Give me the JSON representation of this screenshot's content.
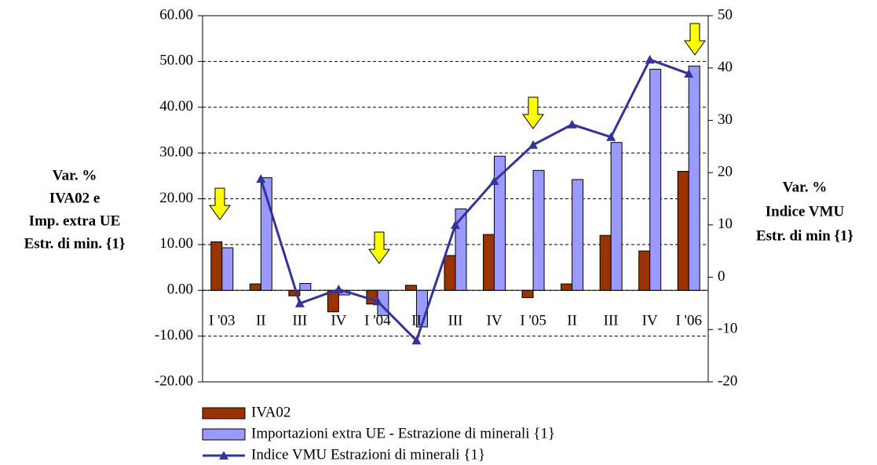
{
  "chart_data": {
    "type": "bar-line",
    "categories": [
      "I '03",
      "II",
      "III",
      "IV",
      "I '04",
      "II",
      "III",
      "IV",
      "I '05",
      "II",
      "III",
      "IV",
      "I '06"
    ],
    "series": [
      {
        "name": "IVA02",
        "type": "bar",
        "color": "#993300",
        "values": [
          10.6,
          1.4,
          -1.2,
          -4.7,
          -3.0,
          1.1,
          7.6,
          12.2,
          -1.6,
          1.4,
          12.0,
          8.6,
          26.0
        ]
      },
      {
        "name": "Importazioni extra UE - Estrazione di minerali {1}",
        "type": "bar",
        "color": "#9999ff",
        "values": [
          9.3,
          24.6,
          1.5,
          -1.0,
          -5.5,
          -8.0,
          17.8,
          29.3,
          26.2,
          24.2,
          32.3,
          48.3,
          49.0
        ]
      },
      {
        "name": "Indice VMU Estrazioni di minerali {1}",
        "type": "line",
        "axis": "y2",
        "color": "#333399",
        "values": [
          null,
          18.8,
          -5.0,
          -2.3,
          -4.6,
          -12.1,
          10.0,
          18.4,
          25.3,
          29.2,
          26.8,
          41.6,
          38.9
        ]
      }
    ],
    "ylabel": [
      "Var. %",
      "IVA02 e",
      "Imp. extra UE",
      "Estr. di min. {1}"
    ],
    "y2label": [
      "Var. %",
      "Indice VMU",
      "Estr. di min {1}"
    ],
    "ylim": [
      -20,
      60
    ],
    "yticks": [
      {
        "value": -20,
        "label": "-20.00"
      },
      {
        "value": -10,
        "label": "-10.00"
      },
      {
        "value": 0,
        "label": "0.00"
      },
      {
        "value": 10,
        "label": "10.00"
      },
      {
        "value": 20,
        "label": "20.00"
      },
      {
        "value": 30,
        "label": "30.00"
      },
      {
        "value": 40,
        "label": "40.00"
      },
      {
        "value": 50,
        "label": "50.00"
      },
      {
        "value": 60,
        "label": "60.00"
      }
    ],
    "y2lim": [
      -20,
      50
    ],
    "y2ticks": [
      -20,
      -10,
      0,
      10,
      20,
      30,
      40,
      50
    ],
    "grid": true,
    "legend": "bottom"
  }
}
